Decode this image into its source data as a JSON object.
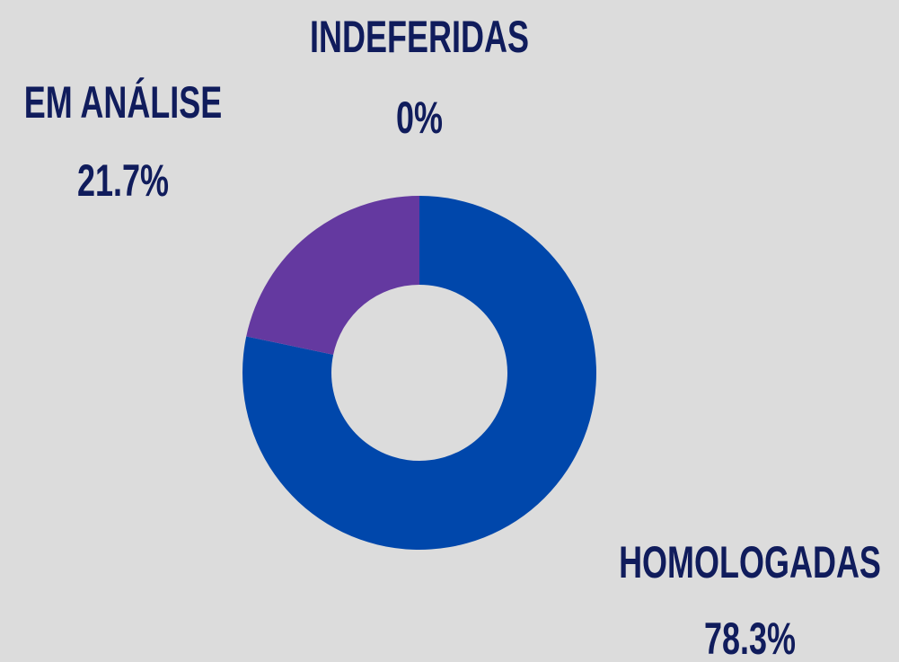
{
  "chart_data": {
    "type": "donut",
    "categories": [
      "HOMOLOGADAS",
      "EM ANÁLISE",
      "INDEFERIDAS"
    ],
    "values": [
      78.3,
      21.7,
      0
    ],
    "value_labels": [
      "78.3%",
      "21.7%",
      "0%"
    ],
    "colors": [
      "#0047ab",
      "#6439a0",
      "#c0392b"
    ]
  }
}
